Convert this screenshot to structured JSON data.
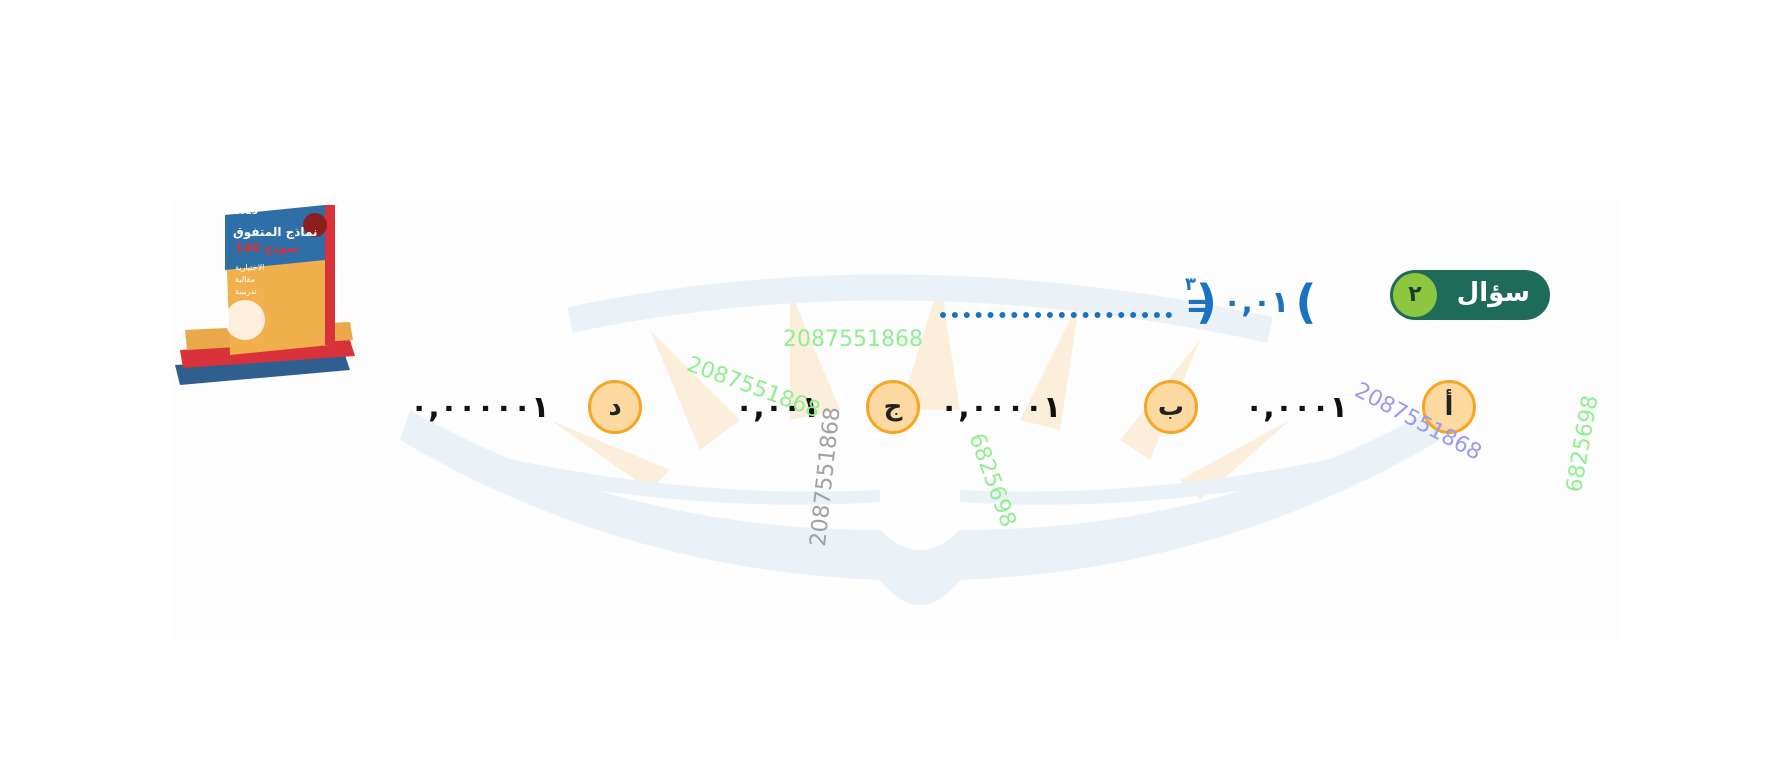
{
  "question": {
    "label": "سؤال",
    "number": "٢",
    "base": "٠,٠١",
    "exponent": "٣",
    "open_paren": "(",
    "close_paren": ")",
    "equals": "="
  },
  "options": [
    {
      "letter": "أ",
      "value": "٠,٠٠٠١"
    },
    {
      "letter": "ب",
      "value": "٠,٠٠٠٠١"
    },
    {
      "letter": "ج",
      "value": "٠,٠٠١"
    },
    {
      "letter": "د",
      "value": "٠,٠٠٠٠٠١"
    }
  ],
  "watermarks": [
    {
      "text": "2087551868",
      "color": "#90ee90"
    },
    {
      "text": "2087551868",
      "color": "#90ee90"
    },
    {
      "text": "2087551868",
      "color": "#a0a0a0"
    },
    {
      "text": "2087551868",
      "color": "#9a9aee"
    },
    {
      "text": "6825698",
      "color": "#90ee90"
    },
    {
      "text": "6825698",
      "color": "#90ee90"
    }
  ],
  "colors": {
    "pill": "#1f6b5a",
    "number_badge": "#8dc63f",
    "expression": "#1a73c0",
    "option_badge_fill": "#fcd9a0",
    "option_badge_border": "#f6a623",
    "logo_tint": "#dbe8f3",
    "logo_sun": "#fbe3bf"
  },
  "book_cover": {
    "year": "2023",
    "title": "نماذج المتفوق",
    "count_label": "140 نموذج",
    "lines": [
      "الاختيارية",
      "مقالية",
      "تدريبية"
    ]
  }
}
